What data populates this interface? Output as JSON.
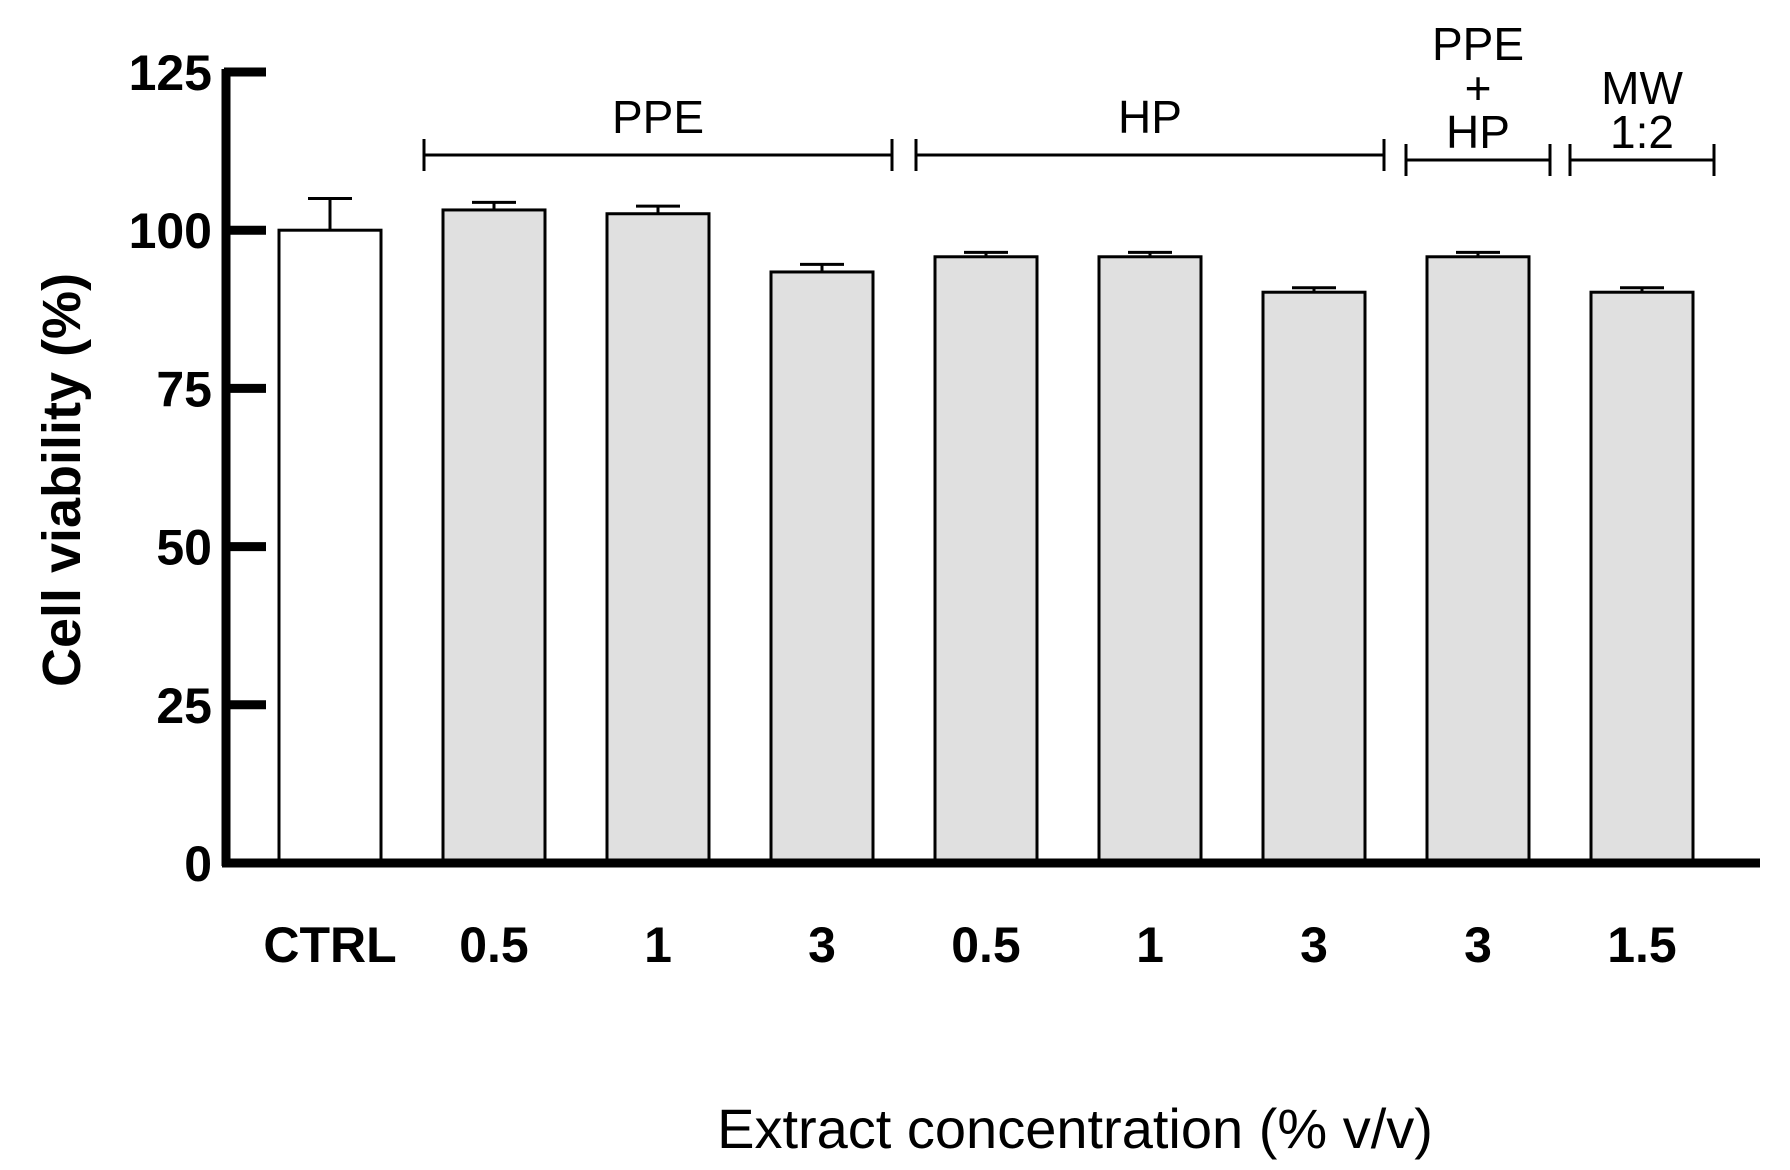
{
  "chart_data": {
    "type": "bar",
    "categories": [
      "CTRL",
      "0.5",
      "1",
      "3",
      "0.5",
      "1",
      "3",
      "3",
      "1.5"
    ],
    "values": [
      100,
      103.2,
      102.6,
      93.4,
      95.8,
      95.8,
      90.2,
      95.8,
      90.2
    ],
    "errors": [
      5,
      1.2,
      1.2,
      1.2,
      0.7,
      0.7,
      0.7,
      0.7,
      0.7
    ],
    "bar_colors": [
      "#ffffff",
      "#e0e0e0",
      "#e0e0e0",
      "#e0e0e0",
      "#e0e0e0",
      "#e0e0e0",
      "#e0e0e0",
      "#e0e0e0",
      "#e0e0e0"
    ],
    "xlabel": "Extract concentration (% v/v)",
    "ylabel": "Cell viability (%)",
    "ylim": [
      0,
      125
    ],
    "yticks": [
      "0",
      "25",
      "50",
      "75",
      "100",
      "125"
    ],
    "groups": [
      {
        "lines": [
          "PPE"
        ],
        "start": 1,
        "end": 3
      },
      {
        "lines": [
          "HP"
        ],
        "start": 4,
        "end": 6
      },
      {
        "lines": [
          "PPE",
          "+",
          "HP"
        ],
        "start": 7,
        "end": 7
      },
      {
        "lines": [
          "MW",
          "1:2"
        ],
        "start": 8,
        "end": 8
      }
    ],
    "grid": false,
    "legend": "none"
  }
}
